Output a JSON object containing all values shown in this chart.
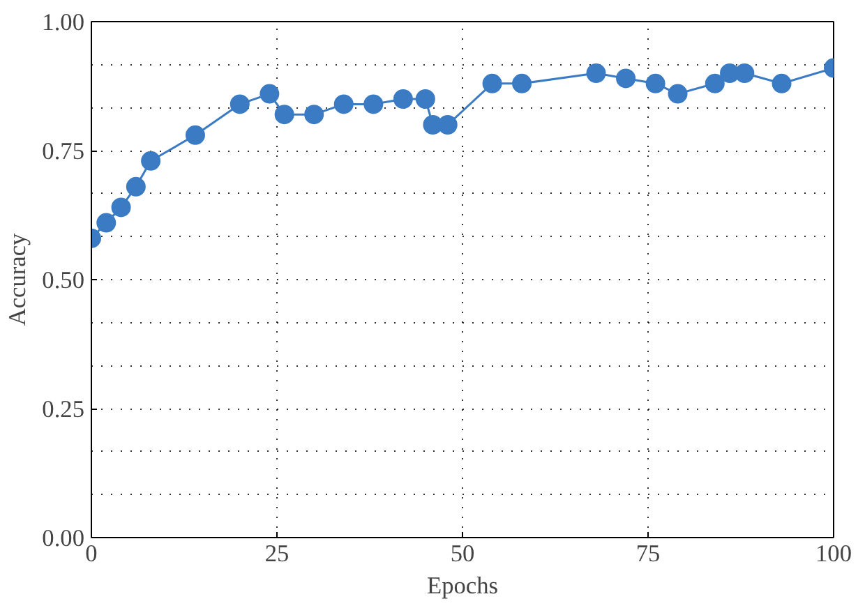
{
  "chart_data": {
    "type": "line",
    "xlabel": "Epochs",
    "ylabel": "Accuracy",
    "x": [
      0,
      2,
      4,
      6,
      8,
      14,
      20,
      24,
      26,
      30,
      34,
      38,
      42,
      45,
      46,
      48,
      54,
      58,
      68,
      72,
      76,
      79,
      84,
      86,
      88,
      93,
      100
    ],
    "series": [
      {
        "color": "#3a7bc4",
        "values": [
          0.58,
          0.61,
          0.64,
          0.68,
          0.73,
          0.78,
          0.84,
          0.86,
          0.82,
          0.82,
          0.84,
          0.84,
          0.85,
          0.85,
          0.8,
          0.8,
          0.88,
          0.88,
          0.9,
          0.89,
          0.88,
          0.86,
          0.88,
          0.9,
          0.9,
          0.88,
          0.91
        ]
      }
    ],
    "xlim": [
      0,
      100
    ],
    "xticks": [
      0,
      25,
      50,
      75,
      100
    ],
    "ylim": [
      0,
      1
    ],
    "yticks": [
      {
        "value": 0,
        "label": "0.00"
      },
      {
        "value": 0.25,
        "label": "0.25"
      },
      {
        "value": 0.5,
        "label": "0.50"
      },
      {
        "value": 0.75,
        "label": "0.75"
      },
      {
        "value": 1,
        "label": "1.00"
      }
    ],
    "grid": true,
    "marker": "circle",
    "line_style": "solid"
  }
}
